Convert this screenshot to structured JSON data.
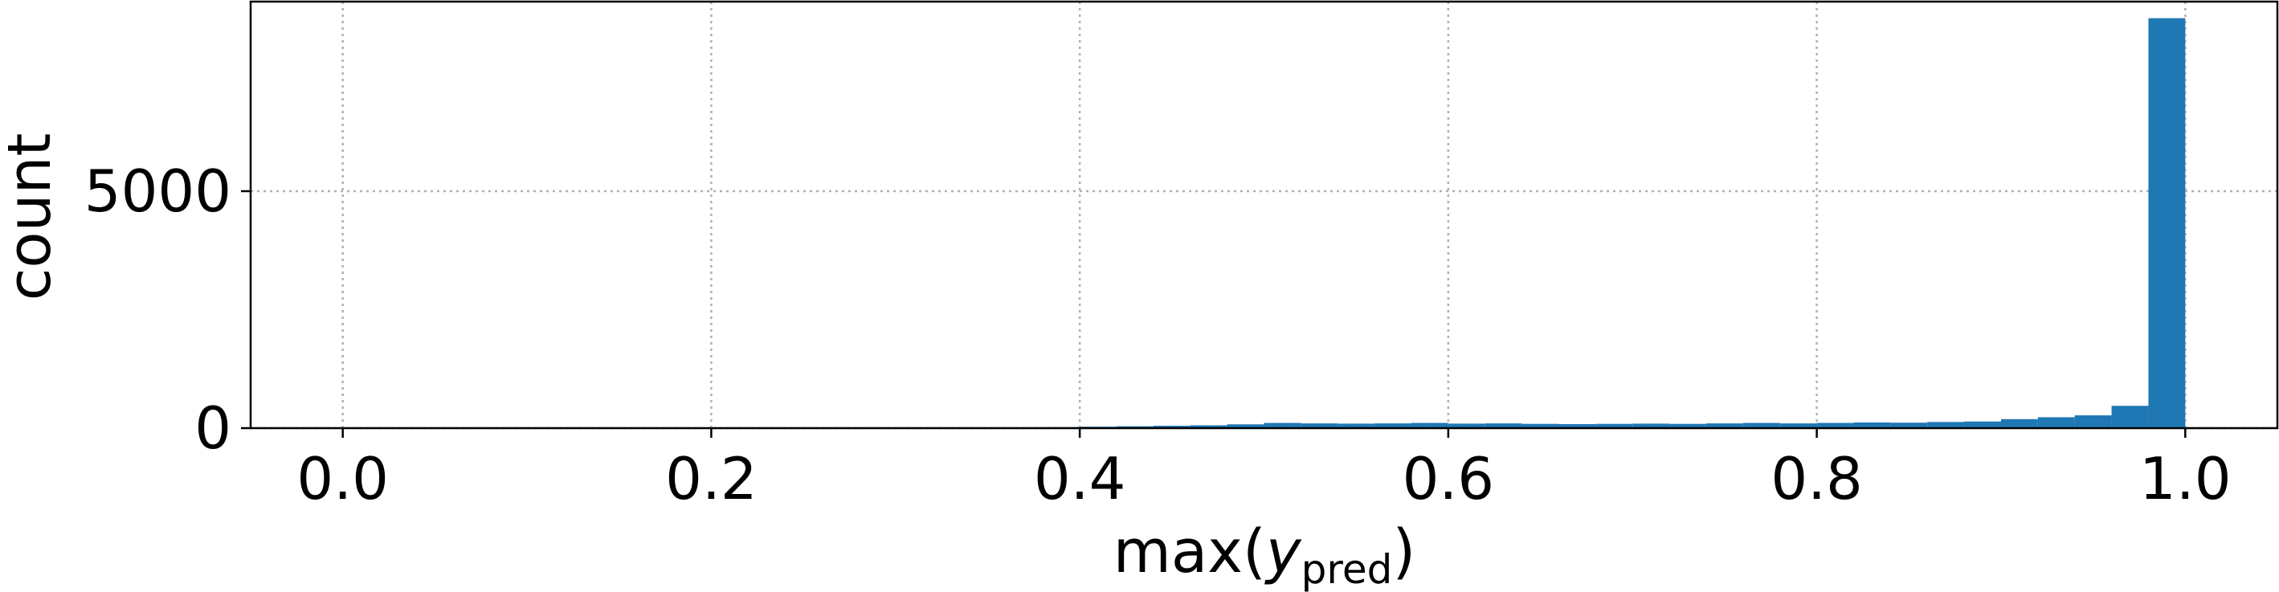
{
  "chart_data": {
    "type": "bar",
    "xlabel_main": "max(",
    "xlabel_var": "y",
    "xlabel_sub": "pred",
    "xlabel_close": ")",
    "ylabel": "count",
    "xlim": [
      -0.05,
      1.05
    ],
    "ylim": [
      0,
      9000
    ],
    "xticks": [
      0.0,
      0.2,
      0.4,
      0.6,
      0.8,
      1.0
    ],
    "xtick_labels": [
      "0.0",
      "0.2",
      "0.4",
      "0.6",
      "0.8",
      "1.0"
    ],
    "yticks": [
      0,
      5000
    ],
    "ytick_labels": [
      "0",
      "5000"
    ],
    "grid": true,
    "bar_color": "#1f77b4",
    "bin_width": 0.02,
    "bins_left": [
      0.36,
      0.38,
      0.4,
      0.42,
      0.44,
      0.46,
      0.48,
      0.5,
      0.52,
      0.54,
      0.56,
      0.58,
      0.6,
      0.62,
      0.64,
      0.66,
      0.68,
      0.7,
      0.72,
      0.74,
      0.76,
      0.78,
      0.8,
      0.82,
      0.84,
      0.86,
      0.88,
      0.9,
      0.92,
      0.94,
      0.96,
      0.98
    ],
    "values": [
      10,
      20,
      30,
      40,
      50,
      60,
      80,
      110,
      100,
      95,
      100,
      110,
      95,
      100,
      90,
      85,
      90,
      95,
      90,
      100,
      110,
      100,
      110,
      120,
      115,
      130,
      140,
      190,
      230,
      270,
      470,
      8650
    ]
  }
}
